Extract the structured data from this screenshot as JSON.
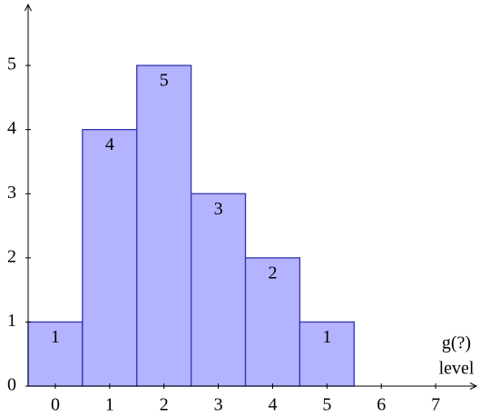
{
  "chart_data": {
    "type": "bar",
    "x": [
      0,
      1,
      2,
      3,
      4,
      5
    ],
    "values": [
      1,
      4,
      5,
      3,
      2,
      1
    ],
    "color": "#b3b3ff",
    "edgecolor": "#3333b3",
    "bar_width": 1,
    "xlim": [
      -0.5,
      7.75
    ],
    "xticks": [
      0,
      1,
      2,
      3,
      4,
      5,
      6,
      7
    ],
    "ylim": [
      0,
      5.95
    ],
    "yticks": [
      0,
      1,
      2,
      3,
      4,
      5
    ],
    "xlabel": [
      "g(?)",
      "level"
    ],
    "grid": false
  }
}
